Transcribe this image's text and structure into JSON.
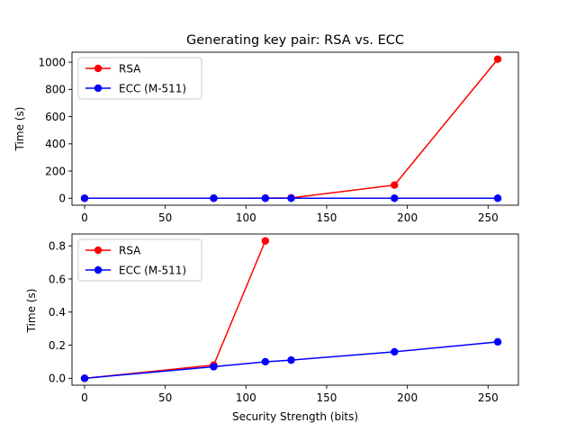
{
  "chart_data": {
    "title": "Generating key pair: RSA vs. ECC",
    "colors": {
      "RSA": "#ff0000",
      "ECC (M-511)": "#0000ff"
    },
    "panels": [
      {
        "type": "line",
        "xlabel": "",
        "ylabel": "Time (s)",
        "xlim": [
          -7.8,
          268.8
        ],
        "ylim": [
          -51.1,
          1073.5
        ],
        "xticks": [
          0,
          50,
          100,
          150,
          200,
          250
        ],
        "yticks": [
          0,
          200,
          400,
          600,
          800,
          1000
        ],
        "xtick_labels": [
          "0",
          "50",
          "100",
          "150",
          "200",
          "250"
        ],
        "ytick_labels": [
          "0",
          "200",
          "400",
          "600",
          "800",
          "1000"
        ],
        "legend": "top-left",
        "grid": false,
        "series": [
          {
            "name": "RSA",
            "color": "#ff0000",
            "x": [
              0,
              80,
              112,
              128,
              192,
              256
            ],
            "y": [
              0,
              0.08,
              0.83,
              3.0,
              97.0,
              1022.0
            ]
          },
          {
            "name": "ECC (M-511)",
            "color": "#0000ff",
            "x": [
              0,
              80,
              112,
              128,
              192,
              256
            ],
            "y": [
              0,
              0.07,
              0.1,
              0.11,
              0.16,
              0.22
            ]
          }
        ]
      },
      {
        "type": "line",
        "xlabel": "Security Strength (bits)",
        "ylabel": "Time (s)",
        "xlim": [
          -7.8,
          268.8
        ],
        "ylim": [
          -0.0415,
          0.8715
        ],
        "xticks": [
          0,
          50,
          100,
          150,
          200,
          250
        ],
        "yticks": [
          0.0,
          0.2,
          0.4,
          0.6,
          0.8
        ],
        "xtick_labels": [
          "0",
          "50",
          "100",
          "150",
          "200",
          "250"
        ],
        "ytick_labels": [
          "0.0",
          "0.2",
          "0.4",
          "0.6",
          "0.8"
        ],
        "legend": "top-left",
        "grid": false,
        "series": [
          {
            "name": "RSA",
            "color": "#ff0000",
            "x": [
              0,
              80,
              112
            ],
            "y": [
              0,
              0.08,
              0.83
            ]
          },
          {
            "name": "ECC (M-511)",
            "color": "#0000ff",
            "x": [
              0,
              80,
              112,
              128,
              192,
              256
            ],
            "y": [
              0,
              0.07,
              0.1,
              0.11,
              0.16,
              0.22
            ]
          }
        ]
      }
    ]
  }
}
